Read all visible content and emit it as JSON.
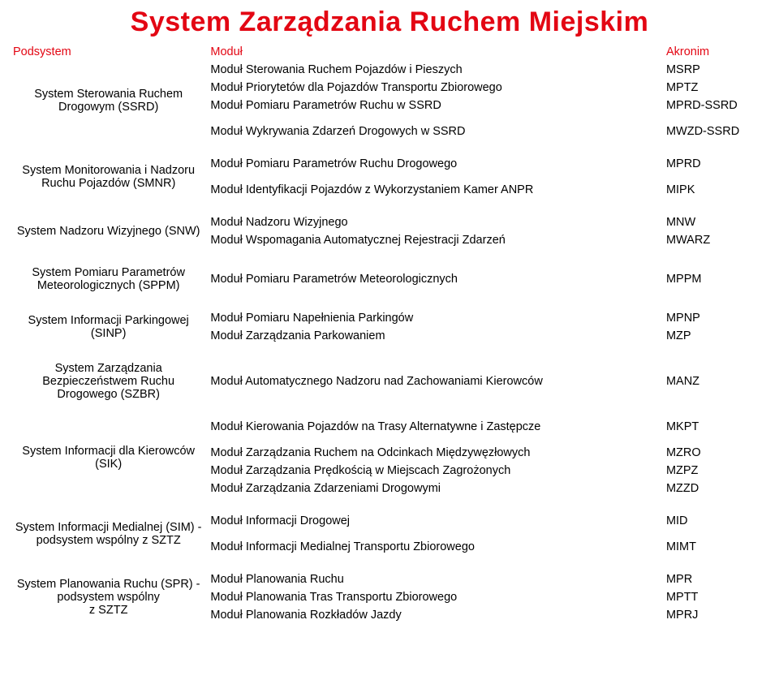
{
  "title": "System Zarządzania Ruchem Miejskim",
  "headers": {
    "podsystem": "Podsystem",
    "modul": "Moduł",
    "akronim": "Akronim"
  },
  "sections": [
    {
      "system": "System Sterowania Ruchem Drogowym (SSRD)",
      "rows": [
        {
          "mod": "Moduł Sterowania Ruchem Pojazdów i Pieszych",
          "acr": "MSRP"
        },
        {
          "mod": "Moduł Priorytetów dla Pojazdów Transportu Zbiorowego",
          "acr": "MPTZ"
        },
        {
          "mod": "Moduł Pomiaru Parametrów Ruchu w SSRD",
          "acr": "MPRD-SSRD"
        },
        {
          "mod": "Moduł Wykrywania Zdarzeń Drogowych w SSRD",
          "acr": "MWZD-SSRD",
          "gapBefore": true
        }
      ]
    },
    {
      "system": "System Monitorowania i Nadzoru Ruchu Pojazdów (SMNR)",
      "rows": [
        {
          "mod": "Moduł Pomiaru Parametrów Ruchu Drogowego",
          "acr": "MPRD"
        },
        {
          "mod": "Moduł Identyfikacji Pojazdów z Wykorzystaniem Kamer ANPR",
          "acr": "MIPK",
          "gapBefore": true
        }
      ]
    },
    {
      "system": "System Nadzoru Wizyjnego (SNW)",
      "rows": [
        {
          "mod": "Moduł Nadzoru Wizyjnego",
          "acr": "MNW"
        },
        {
          "mod": "Moduł Wspomagania Automatycznej Rejestracji Zdarzeń",
          "acr": "MWARZ"
        }
      ]
    },
    {
      "system": "System Pomiaru Parametrów Meteorologicznych (SPPM)",
      "rows": [
        {
          "mod": "Moduł Pomiaru Parametrów Meteorologicznych",
          "acr": "MPPM"
        }
      ]
    },
    {
      "system": "System Informacji Parkingowej (SINP)",
      "rows": [
        {
          "mod": "Moduł Pomiaru Napełnienia Parkingów",
          "acr": "MPNP"
        },
        {
          "mod": "Moduł Zarządzania Parkowaniem",
          "acr": "MZP"
        }
      ]
    },
    {
      "system": "System Zarządzania Bezpieczeństwem Ruchu Drogowego (SZBR)",
      "rows": [
        {
          "mod": "Moduł Automatycznego Nadzoru nad Zachowaniami Kierowców",
          "acr": "MANZ"
        }
      ]
    },
    {
      "system": "System Informacji dla Kierowców (SIK)",
      "rows": [
        {
          "mod": "Moduł Kierowania Pojazdów na Trasy Alternatywne i Zastępcze",
          "acr": "MKPT",
          "gapAfter": true
        },
        {
          "mod": "Moduł Zarządzania Ruchem na Odcinkach Międzywęzłowych",
          "acr": "MZRO"
        },
        {
          "mod": "Moduł Zarządzania Prędkością w Miejscach Zagrożonych",
          "acr": "MZPZ"
        },
        {
          "mod": "Moduł Zarządzania Zdarzeniami Drogowymi",
          "acr": "MZZD"
        }
      ]
    },
    {
      "system": "System Informacji Medialnej (SIM) - podsystem wspólny z SZTZ",
      "rows": [
        {
          "mod": "Moduł Informacji Drogowej",
          "acr": "MID"
        },
        {
          "mod": "Moduł Informacji Medialnej Transportu Zbiorowego",
          "acr": "MIMT",
          "gapBefore": true
        }
      ]
    },
    {
      "system": "System Planowania Ruchu (SPR) - podsystem wspólny\nz SZTZ",
      "rows": [
        {
          "mod": "Moduł Planowania Ruchu",
          "acr": "MPR"
        },
        {
          "mod": "Moduł Planowania Tras Transportu Zbiorowego",
          "acr": "MPTT"
        },
        {
          "mod": "Moduł Planowania Rozkładów Jazdy",
          "acr": "MPRJ"
        }
      ]
    }
  ]
}
